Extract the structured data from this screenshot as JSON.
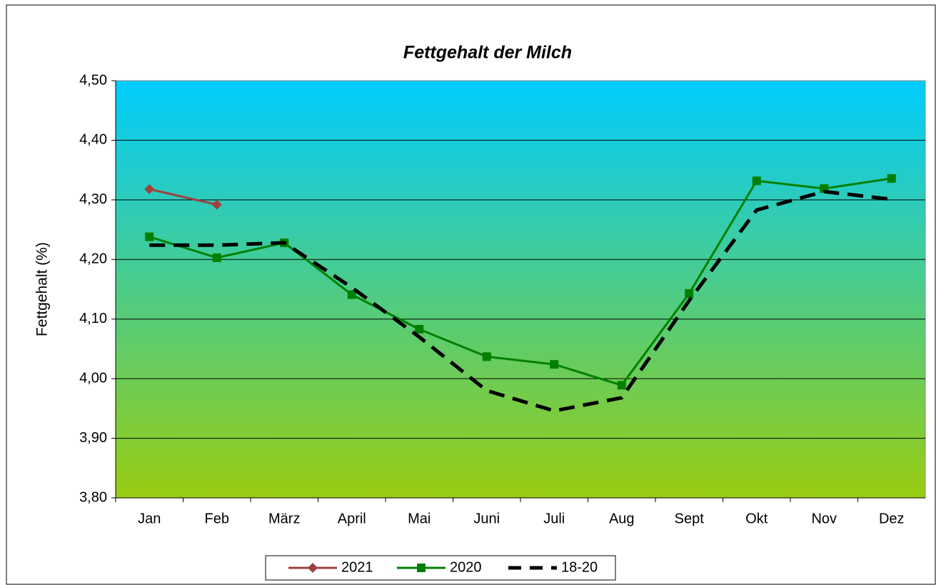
{
  "chart_data": {
    "type": "line",
    "title": "Fettgehalt der Milch",
    "y_label": "Fettgehalt (%)",
    "categories": [
      "Jan",
      "Feb",
      "März",
      "April",
      "Mai",
      "Juni",
      "Juli",
      "Aug",
      "Sept",
      "Okt",
      "Nov",
      "Dez"
    ],
    "series": [
      {
        "name": "2021",
        "color": "#a0403c",
        "marker": "diamond",
        "dash": false,
        "values": [
          4.318,
          4.292,
          null,
          null,
          null,
          null,
          null,
          null,
          null,
          null,
          null,
          null
        ]
      },
      {
        "name": "2020",
        "color": "#008000",
        "marker": "square",
        "dash": false,
        "values": [
          4.238,
          4.203,
          4.228,
          4.141,
          4.083,
          4.037,
          4.024,
          3.989,
          4.143,
          4.332,
          4.319,
          4.336
        ]
      },
      {
        "name": "18-20",
        "color": "#000000",
        "marker": "none",
        "dash": true,
        "values": [
          4.224,
          4.224,
          4.228,
          4.153,
          4.07,
          3.98,
          3.946,
          3.968,
          4.131,
          4.283,
          4.314,
          4.301
        ]
      }
    ],
    "ylim": [
      3.8,
      4.5
    ],
    "yticks": [
      {
        "value": 3.8,
        "label": "3,80"
      },
      {
        "value": 3.9,
        "label": "3,90"
      },
      {
        "value": 4.0,
        "label": "4,00"
      },
      {
        "value": 4.1,
        "label": "4,10"
      },
      {
        "value": 4.2,
        "label": "4,20"
      },
      {
        "value": 4.3,
        "label": "4,30"
      },
      {
        "value": 4.4,
        "label": "4,40"
      },
      {
        "value": 4.5,
        "label": "4,50"
      }
    ],
    "grid": true,
    "legend": "bottom"
  }
}
